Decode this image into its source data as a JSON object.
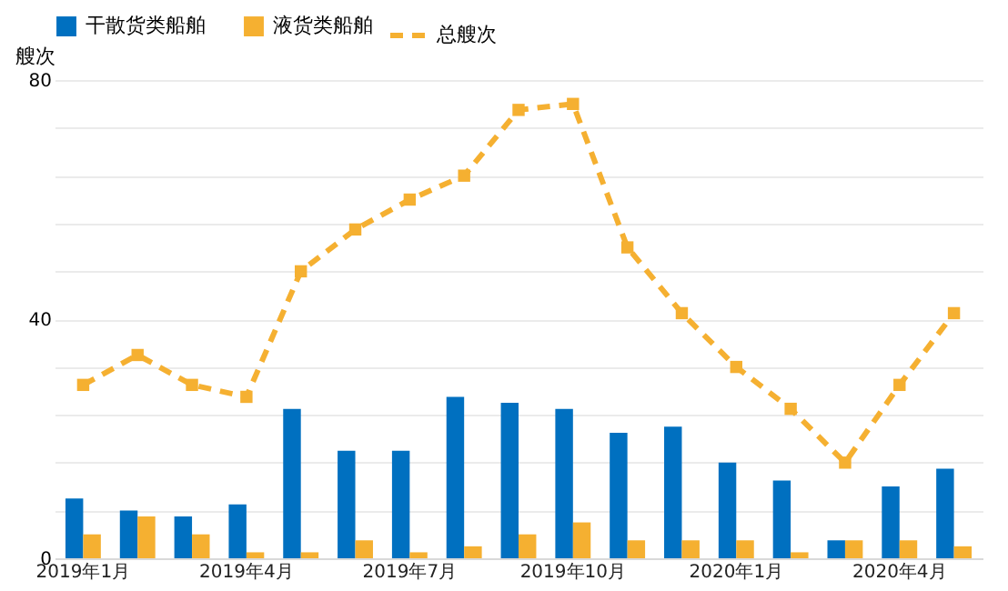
{
  "chart_data": {
    "type": "bar",
    "ylabel": "艘次",
    "categories": [
      "2019年1月",
      null,
      null,
      "2019年4月",
      null,
      null,
      "2019年7月",
      null,
      null,
      "2019年10月",
      null,
      null,
      "2020年1月",
      null,
      null,
      "2020年4月",
      null
    ],
    "series": [
      {
        "name": "干散货类船舶",
        "color": "#0070c0",
        "values": [
          10,
          8,
          7,
          9,
          25,
          18,
          18,
          27,
          26,
          25,
          21,
          22,
          16,
          13,
          3,
          12,
          15
        ]
      },
      {
        "name": "液货类船舶",
        "color": "#f5b031",
        "values": [
          4,
          7,
          4,
          1,
          1,
          3,
          1,
          2,
          4,
          6,
          3,
          3,
          3,
          1,
          3,
          3,
          2
        ]
      },
      {
        "name": "总艘次",
        "type": "line",
        "color": "#f5b031",
        "marker": "square",
        "line_style": "dashed",
        "values": [
          29,
          34,
          29,
          27,
          48,
          55,
          60,
          64,
          75,
          76,
          52,
          41,
          32,
          25,
          16,
          29,
          41
        ]
      }
    ],
    "ylim": [
      0,
      80
    ],
    "yticks": [
      0,
      {
        "value": 8,
        "label": null
      },
      {
        "value": 16,
        "label": null
      },
      {
        "value": 24,
        "label": null
      },
      {
        "value": 32,
        "label": null
      },
      40,
      {
        "value": 48,
        "label": null
      },
      {
        "value": 56,
        "label": null
      },
      {
        "value": 64,
        "label": null
      },
      {
        "value": 72,
        "label": null
      },
      80
    ],
    "grid": "y",
    "legend": "top"
  }
}
